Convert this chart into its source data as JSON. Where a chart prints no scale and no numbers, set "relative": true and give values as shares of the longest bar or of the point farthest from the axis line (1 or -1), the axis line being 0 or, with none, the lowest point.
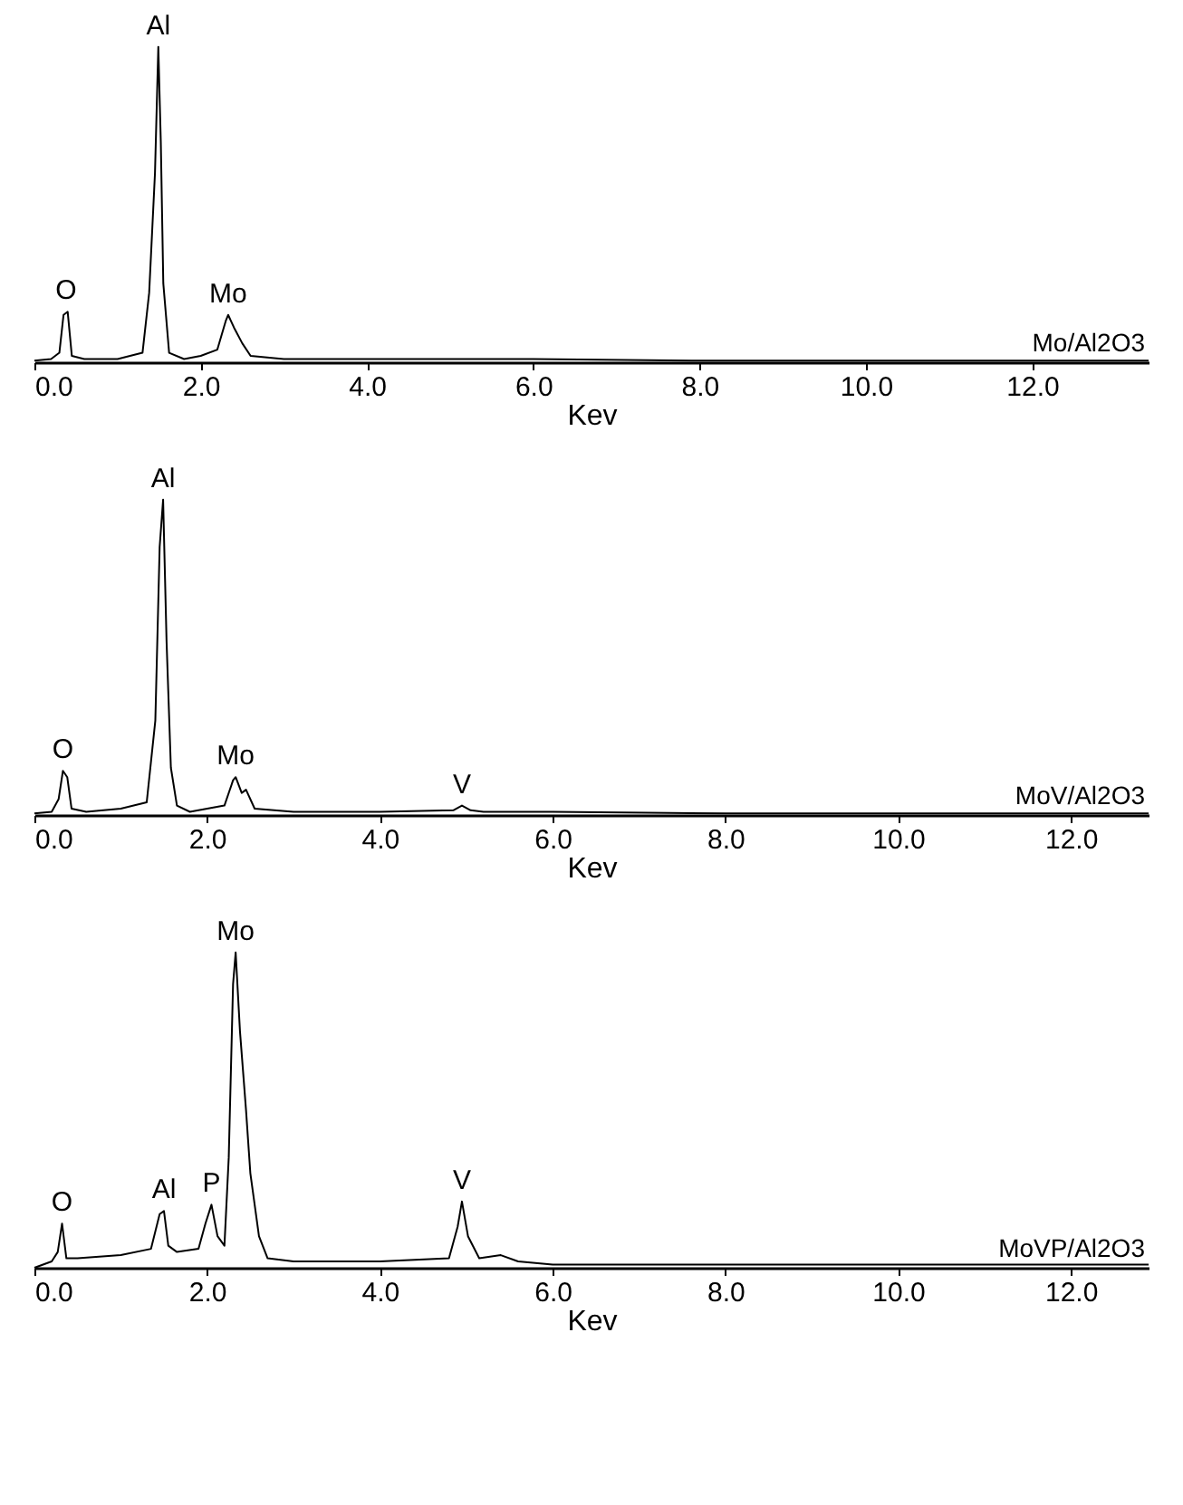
{
  "chart_data": [
    {
      "type": "line",
      "relative": true,
      "xlabel": "Kev",
      "xlim": [
        0,
        13.4
      ],
      "grid": false,
      "xticks": [
        {
          "value": 0,
          "label": "0.0"
        },
        {
          "value": 2,
          "label": "2.0"
        },
        {
          "value": 4,
          "label": "4.0"
        },
        {
          "value": 6,
          "label": "6.0"
        },
        {
          "value": 8,
          "label": "8.0"
        },
        {
          "value": 10,
          "label": "10.0"
        },
        {
          "value": 12,
          "label": "12.0"
        }
      ],
      "x": [
        0.0,
        0.2,
        0.3,
        0.35,
        0.4,
        0.45,
        0.6,
        1.0,
        1.3,
        1.38,
        1.45,
        1.49,
        1.52,
        1.55,
        1.62,
        1.8,
        2.0,
        2.2,
        2.3,
        2.33,
        2.4,
        2.5,
        2.6,
        3.0,
        4.0,
        6.0,
        8.0,
        10.0,
        12.0,
        13.4
      ],
      "series": [
        {
          "color": "#000000",
          "values": [
            0.005,
            0.01,
            0.03,
            0.15,
            0.16,
            0.02,
            0.01,
            0.01,
            0.03,
            0.22,
            0.6,
            1.0,
            0.7,
            0.25,
            0.03,
            0.01,
            0.02,
            0.04,
            0.13,
            0.15,
            0.11,
            0.06,
            0.02,
            0.01,
            0.01,
            0.01,
            0.005,
            0.005,
            0.005,
            0.005
          ]
        }
      ],
      "annotations": [
        {
          "text": "O",
          "x": 0.38,
          "y": 0.16
        },
        {
          "text": "Al",
          "x": 1.49,
          "y": 1.0
        },
        {
          "text": "Mo",
          "x": 2.33,
          "y": 0.15
        },
        "Mo/Al2O3"
      ]
    },
    {
      "type": "line",
      "relative": true,
      "xlabel": "Kev",
      "xlim": [
        0,
        12.9
      ],
      "grid": false,
      "xticks": [
        {
          "value": 0,
          "label": "0.0"
        },
        {
          "value": 2,
          "label": "2.0"
        },
        {
          "value": 4,
          "label": "4.0"
        },
        {
          "value": 6,
          "label": "6.0"
        },
        {
          "value": 8,
          "label": "8.0"
        },
        {
          "value": 10,
          "label": "10.0"
        },
        {
          "value": 12,
          "label": "12.0"
        }
      ],
      "x": [
        0.0,
        0.2,
        0.28,
        0.33,
        0.38,
        0.43,
        0.6,
        1.0,
        1.3,
        1.4,
        1.45,
        1.49,
        1.53,
        1.58,
        1.65,
        1.8,
        2.0,
        2.2,
        2.3,
        2.33,
        2.4,
        2.45,
        2.55,
        3.0,
        4.0,
        4.85,
        4.95,
        5.05,
        5.2,
        6.0,
        8.0,
        10.0,
        12.0,
        12.9
      ],
      "series": [
        {
          "color": "#000000",
          "values": [
            0.005,
            0.01,
            0.05,
            0.14,
            0.12,
            0.02,
            0.01,
            0.02,
            0.04,
            0.3,
            0.85,
            1.0,
            0.55,
            0.15,
            0.03,
            0.01,
            0.02,
            0.03,
            0.11,
            0.12,
            0.07,
            0.08,
            0.02,
            0.01,
            0.01,
            0.015,
            0.03,
            0.015,
            0.01,
            0.01,
            0.005,
            0.005,
            0.005,
            0.005
          ]
        }
      ],
      "annotations": [
        {
          "text": "O",
          "x": 0.33,
          "y": 0.14
        },
        {
          "text": "Al",
          "x": 1.49,
          "y": 1.0
        },
        {
          "text": "Mo",
          "x": 2.33,
          "y": 0.12
        },
        {
          "text": "V",
          "x": 4.95,
          "y": 0.03
        },
        "MoV/Al2O3"
      ]
    },
    {
      "type": "line",
      "relative": true,
      "xlabel": "Kev",
      "xlim": [
        0,
        12.9
      ],
      "grid": false,
      "xticks": [
        {
          "value": 0,
          "label": "0.0"
        },
        {
          "value": 2,
          "label": "2.0"
        },
        {
          "value": 4,
          "label": "4.0"
        },
        {
          "value": 6,
          "label": "6.0"
        },
        {
          "value": 8,
          "label": "8.0"
        },
        {
          "value": 10,
          "label": "10.0"
        },
        {
          "value": 12,
          "label": "12.0"
        }
      ],
      "x": [
        0.0,
        0.2,
        0.27,
        0.32,
        0.37,
        0.5,
        1.0,
        1.35,
        1.45,
        1.5,
        1.55,
        1.65,
        1.9,
        1.98,
        2.05,
        2.12,
        2.2,
        2.25,
        2.3,
        2.33,
        2.38,
        2.45,
        2.5,
        2.6,
        2.7,
        3.0,
        4.0,
        4.8,
        4.9,
        4.95,
        5.02,
        5.15,
        5.4,
        5.6,
        6.0,
        8.0,
        10.0,
        12.0,
        12.9
      ],
      "series": [
        {
          "color": "#000000",
          "values": [
            0.0,
            0.02,
            0.05,
            0.14,
            0.03,
            0.03,
            0.04,
            0.06,
            0.17,
            0.18,
            0.07,
            0.05,
            0.06,
            0.14,
            0.2,
            0.1,
            0.07,
            0.35,
            0.9,
            1.0,
            0.75,
            0.5,
            0.3,
            0.1,
            0.03,
            0.02,
            0.02,
            0.03,
            0.13,
            0.21,
            0.1,
            0.03,
            0.04,
            0.02,
            0.01,
            0.01,
            0.01,
            0.01,
            0.01
          ]
        }
      ],
      "annotations": [
        {
          "text": "O",
          "x": 0.32,
          "y": 0.14
        },
        {
          "text": "Al",
          "x": 1.5,
          "y": 0.18
        },
        {
          "text": "P",
          "x": 2.05,
          "y": 0.2
        },
        {
          "text": "Mo",
          "x": 2.33,
          "y": 1.0
        },
        {
          "text": "V",
          "x": 4.95,
          "y": 0.21
        },
        "MoVP/Al2O3"
      ]
    }
  ]
}
